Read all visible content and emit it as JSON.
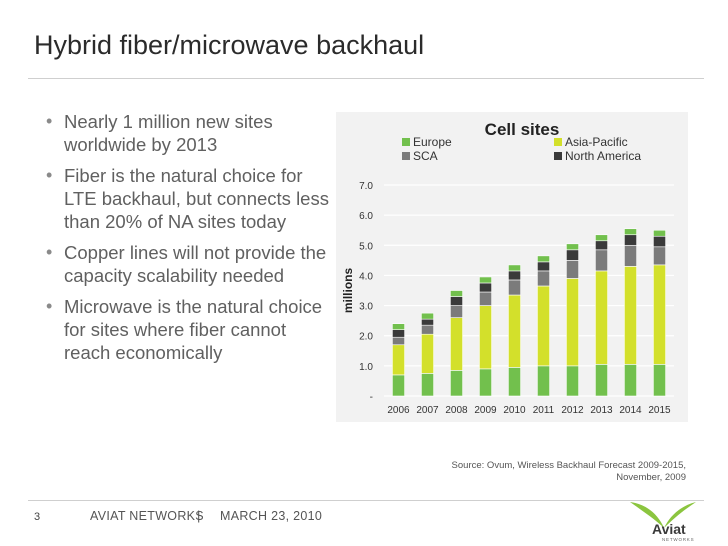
{
  "slide": {
    "title": "Hybrid fiber/microwave backhaul",
    "bullets": [
      "Nearly 1 million new sites worldwide by 2013",
      "Fiber is the natural choice for LTE backhaul, but connects less than 20% of NA sites today",
      "Copper lines will not provide the capacity scalability needed",
      "Microwave is the natural choice for sites where fiber cannot reach economically"
    ],
    "source": "Source: Ovum, Wireless Backhaul Forecast 2009-2015, November, 2009",
    "footer": {
      "page_number": "3",
      "company": "AVIAT NETWORKS",
      "separator": "|",
      "date": "MARCH 23, 2010"
    },
    "logo_text": "Aviat",
    "logo_subtext": "NETWORKS"
  },
  "colors": {
    "europe": "#72c04d",
    "asia_pacific": "#d3e02b",
    "sca": "#7b7b7b",
    "north_america": "#3a3a3a",
    "chart_background": "#f2f2f2",
    "logo_green": "#8bc53f"
  },
  "chart_data": {
    "type": "bar",
    "stacked": true,
    "title": "Cell sites",
    "ylabel": "millions",
    "xlabel": "",
    "ylim": [
      0,
      7
    ],
    "yticks": [
      "-",
      "1.0",
      "2.0",
      "3.0",
      "4.0",
      "5.0",
      "6.0",
      "7.0"
    ],
    "grid": true,
    "legend_position": "top",
    "categories": [
      "2006",
      "2007",
      "2008",
      "2009",
      "2010",
      "2011",
      "2012",
      "2013",
      "2014",
      "2015"
    ],
    "series": [
      {
        "name": "Europe",
        "color": "#72c04d",
        "values": [
          0.7,
          0.75,
          0.85,
          0.9,
          0.95,
          1.0,
          1.0,
          1.05,
          1.05,
          1.05
        ]
      },
      {
        "name": "Asia-Pacific",
        "color": "#d3e02b",
        "values": [
          1.0,
          1.3,
          1.75,
          2.1,
          2.4,
          2.65,
          2.9,
          3.1,
          3.25,
          3.3
        ]
      },
      {
        "name": "SCA",
        "color": "#7b7b7b",
        "values": [
          0.25,
          0.3,
          0.4,
          0.45,
          0.5,
          0.5,
          0.6,
          0.7,
          0.7,
          0.6
        ]
      },
      {
        "name": "North America",
        "color": "#3a3a3a",
        "values": [
          0.25,
          0.2,
          0.3,
          0.3,
          0.3,
          0.3,
          0.35,
          0.3,
          0.35,
          0.35
        ]
      }
    ],
    "top_segment_color": "#72c04d"
  }
}
